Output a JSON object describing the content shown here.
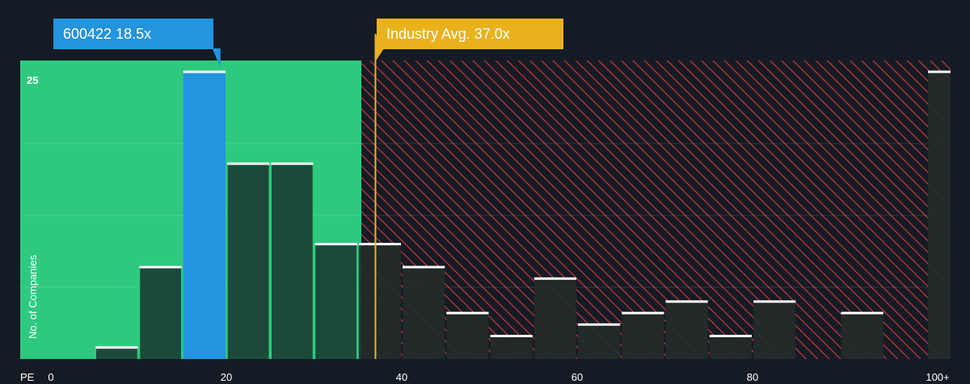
{
  "chart_data": {
    "type": "bar",
    "xlabel": "PE",
    "ylabel": "No. of Companies",
    "x_ticks": [
      "0",
      "20",
      "40",
      "60",
      "80",
      "100+"
    ],
    "y_ticks": [
      "25"
    ],
    "xlim": [
      0,
      100
    ],
    "ylim": [
      0,
      25
    ],
    "bins": [
      {
        "x0": 5,
        "x1": 10,
        "value": 1
      },
      {
        "x0": 10,
        "x1": 15,
        "value": 8
      },
      {
        "x0": 15,
        "x1": 20,
        "value": 25,
        "highlight": true
      },
      {
        "x0": 20,
        "x1": 25,
        "value": 17
      },
      {
        "x0": 25,
        "x1": 30,
        "value": 17
      },
      {
        "x0": 30,
        "x1": 35,
        "value": 10
      },
      {
        "x0": 35,
        "x1": 40,
        "value": 10
      },
      {
        "x0": 40,
        "x1": 45,
        "value": 8
      },
      {
        "x0": 45,
        "x1": 50,
        "value": 4
      },
      {
        "x0": 50,
        "x1": 55,
        "value": 2
      },
      {
        "x0": 55,
        "x1": 60,
        "value": 7
      },
      {
        "x0": 60,
        "x1": 65,
        "value": 3
      },
      {
        "x0": 65,
        "x1": 70,
        "value": 4
      },
      {
        "x0": 70,
        "x1": 75,
        "value": 5
      },
      {
        "x0": 75,
        "x1": 80,
        "value": 2
      },
      {
        "x0": 80,
        "x1": 85,
        "value": 5
      },
      {
        "x0": 90,
        "x1": 95,
        "value": 4
      },
      {
        "x0": 100,
        "x1": 105,
        "value": 25
      }
    ],
    "company": {
      "label": "600422 18.5x",
      "pe": 18.5
    },
    "industry_avg": {
      "label": "Industry Avg. 37.0x",
      "pe": 37.0
    },
    "fair_range_max": 35,
    "colors": {
      "background": "#151b24",
      "fair_zone": "#2ec97f",
      "bar_in_zone": "#1c4a3a",
      "bar_out_zone": "#232a2a",
      "bar_edge_in_zone": "#2ec97f",
      "highlight_bar": "#2394e0",
      "hatch": "#c8393f",
      "industry_line": "#e9b21d",
      "cap": "#ffffff"
    }
  }
}
